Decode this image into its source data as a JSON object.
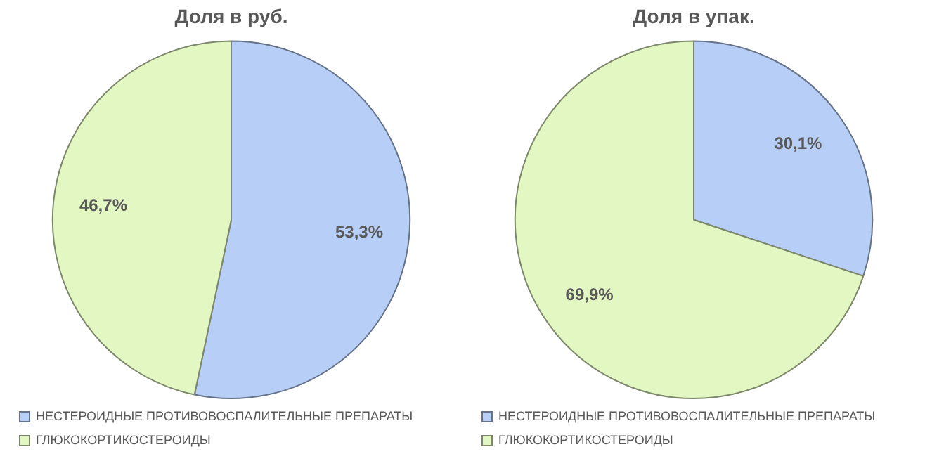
{
  "chart_data": [
    {
      "type": "pie",
      "title": "Доля в руб.",
      "categories": [
        "НЕСТЕРОИДНЫЕ ПРОТИВОВОСПАЛИТЕЛЬНЫЕ ПРЕПАРАТЫ",
        "ГЛЮКОКОРТИКОСТЕРОИДЫ"
      ],
      "values": [
        53.3,
        46.7
      ],
      "colors": [
        "#b7cff7",
        "#e3f7c3"
      ],
      "value_labels": [
        "53,3%",
        "46,7%"
      ],
      "legend": "bottom"
    },
    {
      "type": "pie",
      "title": "Доля в упак.",
      "categories": [
        "НЕСТЕРОИДНЫЕ ПРОТИВОВОСПАЛИТЕЛЬНЫЕ ПРЕПАРАТЫ",
        "ГЛЮКОКОРТИКОСТЕРОИДЫ"
      ],
      "values": [
        30.1,
        69.9
      ],
      "colors": [
        "#b7cff7",
        "#e3f7c3"
      ],
      "value_labels": [
        "30,1%",
        "69,9%"
      ],
      "legend": "bottom"
    }
  ]
}
